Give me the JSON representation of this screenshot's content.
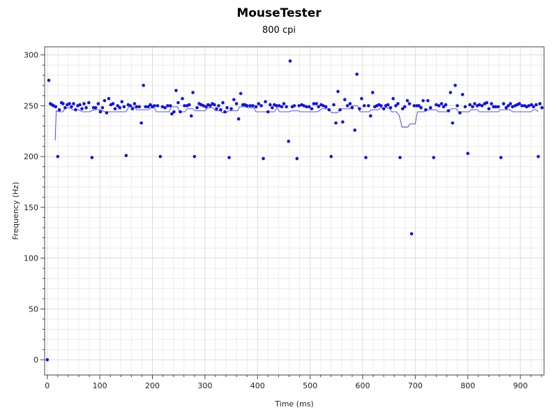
{
  "chart_data": {
    "type": "scatter",
    "title": "MouseTester",
    "subtitle": "800 cpi",
    "xlabel": "Time (ms)",
    "ylabel": "Frequency (Hz)",
    "xlim": [
      -5,
      945
    ],
    "ylim": [
      -15,
      308
    ],
    "xticks": [
      0,
      100,
      200,
      300,
      400,
      500,
      600,
      700,
      800,
      900
    ],
    "yticks": [
      0,
      50,
      100,
      150,
      200,
      250,
      300
    ],
    "grid": true,
    "colors": {
      "points": "#1010ee",
      "line": "#3a3af0",
      "frame": "#444444"
    },
    "series": [
      {
        "type": "scatter",
        "points": [
          [
            0,
            0
          ],
          [
            3,
            275
          ],
          [
            6,
            252
          ],
          [
            9,
            251
          ],
          [
            12,
            250
          ],
          [
            16,
            249
          ],
          [
            20,
            200
          ],
          [
            23,
            246
          ],
          [
            27,
            253
          ],
          [
            30,
            252
          ],
          [
            34,
            248
          ],
          [
            38,
            251
          ],
          [
            42,
            252
          ],
          [
            46,
            249
          ],
          [
            50,
            252
          ],
          [
            54,
            246
          ],
          [
            58,
            250
          ],
          [
            62,
            251
          ],
          [
            66,
            247
          ],
          [
            70,
            252
          ],
          [
            74,
            248
          ],
          [
            79,
            253
          ],
          [
            85,
            199
          ],
          [
            88,
            248
          ],
          [
            92,
            248
          ],
          [
            97,
            252
          ],
          [
            101,
            244
          ],
          [
            105,
            248
          ],
          [
            109,
            255
          ],
          [
            113,
            243
          ],
          [
            117,
            257
          ],
          [
            121,
            251
          ],
          [
            125,
            252
          ],
          [
            129,
            247
          ],
          [
            134,
            250
          ],
          [
            138,
            248
          ],
          [
            142,
            254
          ],
          [
            146,
            249
          ],
          [
            150,
            201
          ],
          [
            154,
            251
          ],
          [
            158,
            250
          ],
          [
            162,
            247
          ],
          [
            166,
            252
          ],
          [
            170,
            249
          ],
          [
            175,
            249
          ],
          [
            179,
            233
          ],
          [
            183,
            270
          ],
          [
            187,
            249
          ],
          [
            192,
            249
          ],
          [
            196,
            251
          ],
          [
            200,
            249
          ],
          [
            204,
            250
          ],
          [
            210,
            250
          ],
          [
            215,
            200
          ],
          [
            219,
            249
          ],
          [
            224,
            248
          ],
          [
            229,
            250
          ],
          [
            234,
            250
          ],
          [
            237,
            242
          ],
          [
            241,
            244
          ],
          [
            245,
            265
          ],
          [
            249,
            253
          ],
          [
            253,
            244
          ],
          [
            257,
            257
          ],
          [
            261,
            250
          ],
          [
            266,
            250
          ],
          [
            270,
            251
          ],
          [
            274,
            240
          ],
          [
            277,
            263
          ],
          [
            280,
            200
          ],
          [
            285,
            248
          ],
          [
            289,
            252
          ],
          [
            293,
            251
          ],
          [
            297,
            250
          ],
          [
            302,
            249
          ],
          [
            306,
            251
          ],
          [
            310,
            250
          ],
          [
            314,
            252
          ],
          [
            318,
            251
          ],
          [
            322,
            247
          ],
          [
            326,
            250
          ],
          [
            330,
            246
          ],
          [
            334,
            253
          ],
          [
            338,
            244
          ],
          [
            342,
            248
          ],
          [
            346,
            199
          ],
          [
            350,
            247
          ],
          [
            355,
            256
          ],
          [
            360,
            252
          ],
          [
            364,
            237
          ],
          [
            368,
            262
          ],
          [
            372,
            251
          ],
          [
            376,
            251
          ],
          [
            380,
            250
          ],
          [
            386,
            250
          ],
          [
            391,
            250
          ],
          [
            397,
            249
          ],
          [
            402,
            252
          ],
          [
            407,
            250
          ],
          [
            411,
            198
          ],
          [
            415,
            254
          ],
          [
            420,
            244
          ],
          [
            424,
            251
          ],
          [
            428,
            248
          ],
          [
            432,
            251
          ],
          [
            436,
            250
          ],
          [
            441,
            250
          ],
          [
            446,
            249
          ],
          [
            450,
            252
          ],
          [
            455,
            249
          ],
          [
            459,
            215
          ],
          [
            462,
            294
          ],
          [
            466,
            249
          ],
          [
            470,
            250
          ],
          [
            475,
            198
          ],
          [
            479,
            250
          ],
          [
            484,
            251
          ],
          [
            488,
            250
          ],
          [
            493,
            249
          ],
          [
            498,
            249
          ],
          [
            503,
            247
          ],
          [
            507,
            252
          ],
          [
            512,
            252
          ],
          [
            516,
            249
          ],
          [
            521,
            251
          ],
          [
            525,
            250
          ],
          [
            530,
            249
          ],
          [
            536,
            246
          ],
          [
            540,
            200
          ],
          [
            545,
            251
          ],
          [
            549,
            233
          ],
          [
            553,
            264
          ],
          [
            557,
            246
          ],
          [
            562,
            234
          ],
          [
            566,
            256
          ],
          [
            571,
            250
          ],
          [
            576,
            252
          ],
          [
            580,
            248
          ],
          [
            585,
            226
          ],
          [
            589,
            281
          ],
          [
            594,
            247
          ],
          [
            598,
            257
          ],
          [
            603,
            250
          ],
          [
            606,
            199
          ],
          [
            611,
            250
          ],
          [
            615,
            240
          ],
          [
            619,
            263
          ],
          [
            623,
            249
          ],
          [
            627,
            250
          ],
          [
            631,
            251
          ],
          [
            635,
            250
          ],
          [
            640,
            247
          ],
          [
            644,
            250
          ],
          [
            648,
            251
          ],
          [
            653,
            248
          ],
          [
            658,
            257
          ],
          [
            663,
            250
          ],
          [
            667,
            252
          ],
          [
            671,
            199
          ],
          [
            676,
            247
          ],
          [
            680,
            249
          ],
          [
            685,
            255
          ],
          [
            689,
            252
          ],
          [
            693,
            124
          ],
          [
            698,
            250
          ],
          [
            703,
            250
          ],
          [
            707,
            250
          ],
          [
            711,
            248
          ],
          [
            715,
            255
          ],
          [
            720,
            246
          ],
          [
            724,
            255
          ],
          [
            729,
            248
          ],
          [
            735,
            199
          ],
          [
            740,
            251
          ],
          [
            745,
            250
          ],
          [
            750,
            252
          ],
          [
            754,
            249
          ],
          [
            758,
            251
          ],
          [
            763,
            245
          ],
          [
            767,
            263
          ],
          [
            771,
            233
          ],
          [
            776,
            270
          ],
          [
            780,
            250
          ],
          [
            785,
            243
          ],
          [
            790,
            261
          ],
          [
            795,
            249
          ],
          [
            800,
            203
          ],
          [
            804,
            251
          ],
          [
            809,
            249
          ],
          [
            813,
            252
          ],
          [
            818,
            250
          ],
          [
            822,
            251
          ],
          [
            827,
            250
          ],
          [
            832,
            252
          ],
          [
            836,
            253
          ],
          [
            840,
            247
          ],
          [
            845,
            252
          ],
          [
            849,
            249
          ],
          [
            853,
            249
          ],
          [
            858,
            249
          ],
          [
            863,
            199
          ],
          [
            868,
            252
          ],
          [
            873,
            248
          ],
          [
            877,
            250
          ],
          [
            881,
            252
          ],
          [
            885,
            249
          ],
          [
            890,
            250
          ],
          [
            894,
            251
          ],
          [
            898,
            252
          ],
          [
            903,
            250
          ],
          [
            908,
            250
          ],
          [
            912,
            249
          ],
          [
            916,
            250
          ],
          [
            921,
            251
          ],
          [
            925,
            249
          ],
          [
            930,
            251
          ],
          [
            934,
            200
          ],
          [
            937,
            252
          ],
          [
            941,
            248
          ]
        ]
      },
      {
        "type": "line",
        "points": [
          [
            15,
            216
          ],
          [
            17,
            245
          ],
          [
            22,
            244
          ],
          [
            30,
            244
          ],
          [
            34,
            248
          ],
          [
            44,
            248
          ],
          [
            48,
            246
          ],
          [
            60,
            246
          ],
          [
            66,
            244
          ],
          [
            80,
            244
          ],
          [
            90,
            246
          ],
          [
            100,
            246
          ],
          [
            110,
            244
          ],
          [
            150,
            244
          ],
          [
            155,
            249
          ],
          [
            165,
            249
          ],
          [
            170,
            246
          ],
          [
            192,
            246
          ],
          [
            198,
            248
          ],
          [
            203,
            248
          ],
          [
            208,
            244
          ],
          [
            232,
            244
          ],
          [
            236,
            249
          ],
          [
            248,
            249
          ],
          [
            251,
            244
          ],
          [
            262,
            244
          ],
          [
            266,
            247
          ],
          [
            277,
            247
          ],
          [
            281,
            245
          ],
          [
            300,
            245
          ],
          [
            305,
            248
          ],
          [
            315,
            248
          ],
          [
            320,
            245
          ],
          [
            330,
            245
          ],
          [
            333,
            243
          ],
          [
            340,
            243
          ],
          [
            345,
            245
          ],
          [
            362,
            245
          ],
          [
            366,
            249
          ],
          [
            376,
            249
          ],
          [
            382,
            248
          ],
          [
            393,
            248
          ],
          [
            397,
            244
          ],
          [
            432,
            244
          ],
          [
            437,
            248
          ],
          [
            442,
            244
          ],
          [
            460,
            244
          ],
          [
            465,
            245
          ],
          [
            478,
            245
          ],
          [
            482,
            244
          ],
          [
            513,
            244
          ],
          [
            517,
            245
          ],
          [
            522,
            247
          ],
          [
            536,
            247
          ],
          [
            541,
            243
          ],
          [
            552,
            243
          ],
          [
            556,
            247
          ],
          [
            575,
            247
          ],
          [
            580,
            250
          ],
          [
            590,
            250
          ],
          [
            595,
            244
          ],
          [
            612,
            244
          ],
          [
            616,
            246
          ],
          [
            630,
            246
          ],
          [
            635,
            248
          ],
          [
            650,
            248
          ],
          [
            655,
            244
          ],
          [
            664,
            244
          ],
          [
            669,
            241
          ],
          [
            675,
            229
          ],
          [
            686,
            229
          ],
          [
            690,
            232
          ],
          [
            700,
            232
          ],
          [
            704,
            244
          ],
          [
            717,
            244
          ],
          [
            722,
            246
          ],
          [
            740,
            246
          ],
          [
            744,
            244
          ],
          [
            764,
            244
          ],
          [
            768,
            247
          ],
          [
            778,
            247
          ],
          [
            782,
            244
          ],
          [
            802,
            244
          ],
          [
            806,
            246
          ],
          [
            818,
            246
          ],
          [
            822,
            244
          ],
          [
            858,
            244
          ],
          [
            862,
            246
          ],
          [
            880,
            246
          ],
          [
            885,
            244
          ],
          [
            920,
            244
          ],
          [
            925,
            246
          ],
          [
            930,
            246
          ],
          [
            934,
            244
          ]
        ]
      }
    ]
  }
}
